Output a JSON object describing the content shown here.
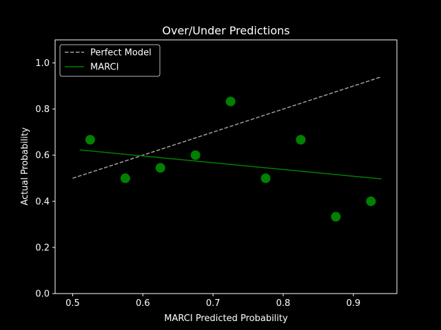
{
  "chart_data": {
    "type": "scatter",
    "title": "Over/Under Predictions",
    "xlabel": "MARCI Predicted Probability",
    "ylabel": "Actual Probability",
    "xlim": [
      0.475,
      0.962
    ],
    "ylim": [
      0.0,
      1.1
    ],
    "xticks": [
      0.5,
      0.6,
      0.7,
      0.8,
      0.9
    ],
    "xtick_labels": [
      "0.5",
      "0.6",
      "0.7",
      "0.8",
      "0.9"
    ],
    "yticks": [
      0.0,
      0.2,
      0.4,
      0.6,
      0.8,
      1.0
    ],
    "ytick_labels": [
      "0.0",
      "0.2",
      "0.4",
      "0.6",
      "0.8",
      "1.0"
    ],
    "grid": false,
    "legend_position": "top-left",
    "background_color": "#000000",
    "series": [
      {
        "name": "Perfect Model",
        "kind": "line",
        "style": "dashed",
        "color": "#a0a0a0",
        "x": [
          0.5,
          0.94
        ],
        "y": [
          0.5,
          0.94
        ]
      },
      {
        "name": "MARCI",
        "kind": "line",
        "style": "solid",
        "color": "#008000",
        "x": [
          0.51,
          0.94
        ],
        "y": [
          0.623,
          0.497
        ]
      },
      {
        "kind": "scatter",
        "color": "#008000",
        "x": [
          0.525,
          0.575,
          0.625,
          0.675,
          0.725,
          0.775,
          0.825,
          0.875,
          0.925
        ],
        "y": [
          0.667,
          0.5,
          0.545,
          0.6,
          0.833,
          0.5,
          0.667,
          0.333,
          0.4
        ]
      }
    ]
  }
}
